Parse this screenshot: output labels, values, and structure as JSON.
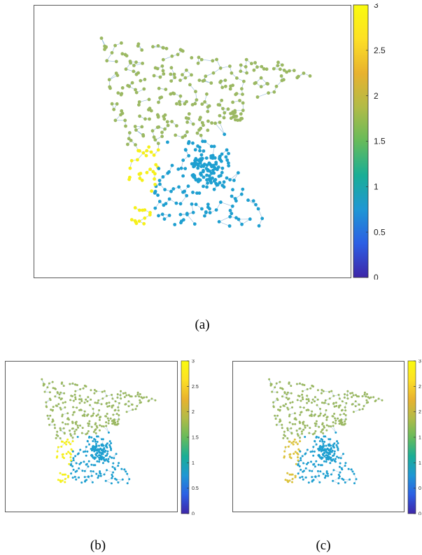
{
  "colormap": {
    "stops": [
      "#3e26a8",
      "#2c5fe4",
      "#1f97d4",
      "#1aae96",
      "#66bb5b",
      "#b1bb47",
      "#e8b22f",
      "#fde025",
      "#f9fb0e"
    ]
  },
  "chart_data": [
    {
      "type": "scatter",
      "panel": "(a)",
      "caption": "(a)",
      "colorbar": {
        "range": [
          0,
          3
        ],
        "ticks": [
          "0",
          "0.5",
          "1",
          "1.5",
          "2",
          "2.5",
          "3"
        ]
      },
      "clusters": [
        {
          "value": 2,
          "color": "#9bb862",
          "region": "north"
        },
        {
          "value": 1,
          "color": "#1e9fd0",
          "region": "southeast"
        },
        {
          "value": 3,
          "color": "#f6f01a",
          "region": "southwest"
        }
      ]
    },
    {
      "type": "scatter",
      "panel": "(b)",
      "caption": "(b)",
      "colorbar": {
        "range": [
          0,
          3
        ],
        "ticks": [
          "0",
          "0.5",
          "1",
          "1.5",
          "2",
          "2.5",
          "3"
        ]
      },
      "clusters": [
        {
          "value": 2,
          "color": "#9bb862",
          "region": "north"
        },
        {
          "value": 1,
          "color": "#1e9fd0",
          "region": "southeast"
        },
        {
          "value": 3,
          "color": "#f6f01a",
          "region": "southwest"
        }
      ]
    },
    {
      "type": "scatter",
      "panel": "(c)",
      "caption": "(c)",
      "colorbar": {
        "range": [
          0,
          3
        ],
        "ticks": [
          "0",
          "0",
          "1",
          "1",
          "2",
          "2",
          "3"
        ]
      },
      "clusters": [
        {
          "value": 2,
          "color": "#9bb862",
          "region": "north"
        },
        {
          "value": 1,
          "color": "#1e9fd0",
          "region": "southeast"
        },
        {
          "value": 2.6,
          "color": "#dcc23a",
          "region": "southwest"
        }
      ]
    }
  ]
}
